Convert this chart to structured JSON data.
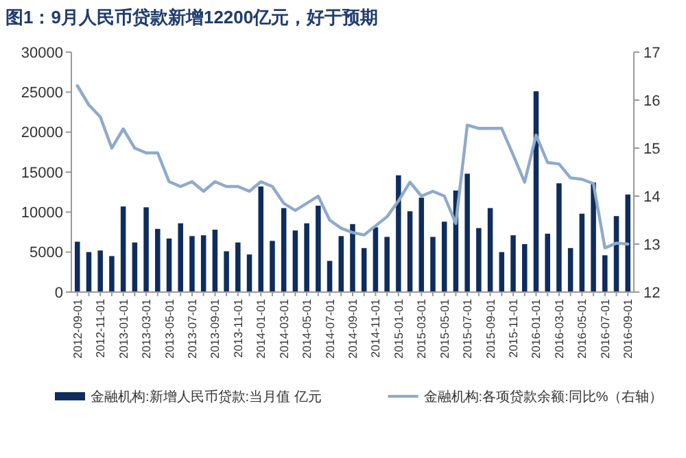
{
  "chart_data": {
    "type": "bar",
    "title": "图1：9月人民币贷款新增12200亿元，好于预期",
    "categories": [
      "2012-09-01",
      null,
      "2012-11-01",
      null,
      "2013-01-01",
      null,
      "2013-03-01",
      null,
      "2013-05-01",
      null,
      "2013-07-01",
      null,
      "2013-09-01",
      null,
      "2013-11-01",
      null,
      "2014-01-01",
      null,
      "2014-03-01",
      null,
      "2014-05-01",
      null,
      "2014-07-01",
      null,
      "2014-09-01",
      null,
      "2014-11-01",
      null,
      "2015-01-01",
      null,
      "2015-03-01",
      null,
      "2015-05-01",
      null,
      "2015-07-01",
      null,
      "2015-09-01",
      null,
      "2015-11-01",
      null,
      "2016-01-01",
      null,
      "2016-03-01",
      null,
      "2016-05-01",
      null,
      "2016-07-01",
      null,
      "2016-09-01"
    ],
    "series": [
      {
        "name": "金融机构:新增人民币贷款:当月值 亿元",
        "color": "#0f2d5c",
        "values": [
          6300,
          5000,
          5200,
          4500,
          10700,
          6200,
          10600,
          7900,
          6700,
          8600,
          7000,
          7100,
          7800,
          5100,
          6200,
          4700,
          13200,
          6400,
          10500,
          7700,
          8600,
          10800,
          3900,
          7000,
          8500,
          5500,
          8100,
          6900,
          14600,
          10100,
          11800,
          6900,
          8800,
          12700,
          14800,
          8000,
          10500,
          5000,
          7100,
          6000,
          25100,
          7300,
          13600,
          5500,
          9800,
          13700,
          4600,
          9500,
          12200
        ]
      },
      {
        "name": "金融机构:各项贷款余额:同比%（右轴）",
        "type": "line",
        "axis": "y2",
        "color": "#8eaacb",
        "values": [
          16.3,
          15.9,
          15.65,
          15.0,
          15.4,
          15.0,
          14.9,
          14.9,
          14.3,
          14.2,
          14.3,
          14.1,
          14.3,
          14.2,
          14.2,
          14.1,
          14.3,
          14.2,
          13.85,
          13.7,
          13.85,
          14.0,
          13.5,
          13.33,
          13.24,
          13.19,
          13.38,
          13.57,
          13.9,
          14.29,
          14.0,
          14.1,
          14.0,
          13.43,
          15.48,
          15.41,
          15.41,
          15.41,
          14.86,
          14.29,
          15.27,
          14.7,
          14.67,
          14.38,
          14.35,
          14.26,
          12.92,
          13.02,
          13.0
        ]
      }
    ],
    "ylim": [
      0,
      30000
    ],
    "yticks": [
      0,
      5000,
      10000,
      15000,
      20000,
      25000,
      30000
    ],
    "y2lim": [
      12,
      17
    ],
    "y2ticks": [
      12,
      13,
      14,
      15,
      16,
      17
    ],
    "legend": "bottom",
    "grid": false
  }
}
